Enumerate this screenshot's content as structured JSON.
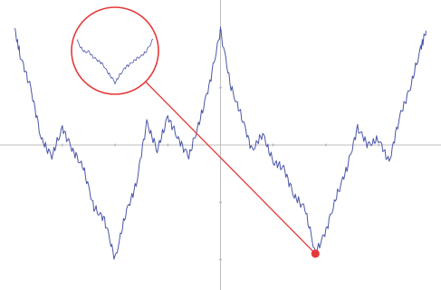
{
  "chart_data": {
    "type": "line",
    "title": "",
    "xlabel": "",
    "ylabel": "",
    "xlim": [
      -2.04,
      2.04
    ],
    "ylim": [
      -1.22,
      1.22
    ],
    "grid": false,
    "colors": {
      "series": "#4a56a8",
      "zoom": "#e33a3a",
      "axis": "#bdbdbd"
    },
    "series": [
      {
        "x": [
          -1.95,
          -1.9,
          -1.8,
          -1.7,
          -1.6,
          -1.5,
          -1.4,
          -1.3,
          -1.2,
          -1.1,
          -1.0,
          -0.9,
          -0.8,
          -0.7,
          -0.6,
          -0.5,
          -0.4,
          -0.3,
          -0.2,
          -0.1,
          0.0,
          0.1,
          0.2,
          0.3,
          0.4,
          0.5,
          0.6,
          0.7,
          0.8,
          0.9,
          1.0,
          1.1,
          1.2,
          1.3,
          1.4,
          1.5,
          1.6,
          1.7,
          1.8,
          1.9,
          1.95
        ],
        "y": [
          1.0,
          0.78,
          0.5,
          0.05,
          -0.1,
          0.15,
          -0.05,
          -0.2,
          -0.55,
          -0.65,
          -1.0,
          -0.6,
          -0.35,
          0.2,
          -0.05,
          0.25,
          0.05,
          -0.1,
          0.2,
          0.55,
          1.0,
          0.5,
          0.25,
          -0.05,
          0.1,
          -0.15,
          -0.2,
          -0.45,
          -0.55,
          -0.95,
          -0.75,
          -0.45,
          -0.2,
          0.15,
          0.0,
          0.05,
          -0.15,
          0.25,
          0.5,
          0.85,
          1.0
        ]
      }
    ],
    "zoom_marker": {
      "x": 0.9,
      "y": -0.95
    },
    "inset_series": {
      "x": [
        0,
        0.05,
        0.1,
        0.15,
        0.2,
        0.25,
        0.3,
        0.35,
        0.4,
        0.45,
        0.5,
        0.55,
        0.6,
        0.65,
        0.7,
        0.75,
        0.8,
        0.85,
        0.9,
        0.95,
        1.0
      ],
      "y": [
        0.95,
        0.8,
        0.7,
        0.72,
        0.62,
        0.55,
        0.5,
        0.42,
        0.28,
        0.18,
        0.05,
        0.18,
        0.3,
        0.4,
        0.45,
        0.52,
        0.58,
        0.62,
        0.7,
        0.82,
        0.98
      ]
    }
  }
}
